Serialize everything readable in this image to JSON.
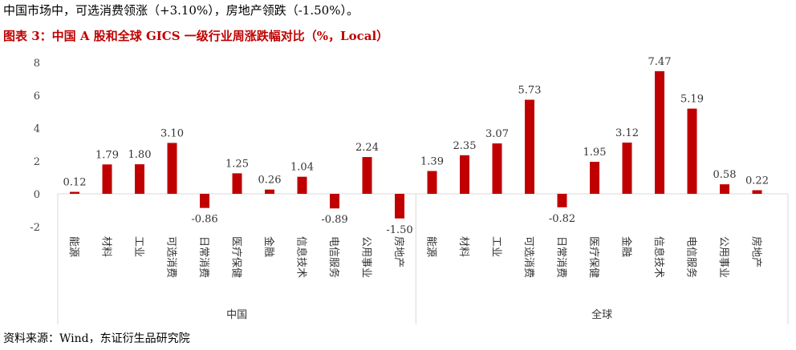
{
  "intro_text": "中国市场中，可选消费领涨（+3.10%），房地产领跌（-1.50%）。",
  "figure_title": "图表 3：中国 A 股和全球 GICS 一级行业周涨跌幅对比（%，Local）",
  "source_text": "资料来源：Wind，东证衍生品研究院",
  "chart_data": {
    "type": "bar",
    "title": "图表 3：中国 A 股和全球 GICS 一级行业周涨跌幅对比（%，Local）",
    "ylim": [
      -2,
      8
    ],
    "yticks": [
      -2,
      0,
      2,
      4,
      6,
      8
    ],
    "grid": false,
    "legend": "none",
    "bar_color": "#c00000",
    "groups": [
      {
        "name": "中国",
        "categories": [
          "能源",
          "材料",
          "工业",
          "可选消费",
          "日常消费",
          "医疗保健",
          "金融",
          "信息技术",
          "电信服务",
          "公用事业",
          "房地产"
        ],
        "values": [
          0.12,
          1.79,
          1.8,
          3.1,
          -0.86,
          1.25,
          0.26,
          1.04,
          -0.89,
          2.24,
          -1.5
        ],
        "labels": [
          "0.12",
          "1.79",
          "1.80",
          "3.10",
          "-0.86",
          "1.25",
          "0.26",
          "1.04",
          "-0.89",
          "2.24",
          "-1.50"
        ]
      },
      {
        "name": "全球",
        "categories": [
          "能源",
          "材料",
          "工业",
          "可选消费",
          "日常消费",
          "医疗保健",
          "金融",
          "信息技术",
          "电信服务",
          "公用事业",
          "房地产"
        ],
        "values": [
          1.39,
          2.35,
          3.07,
          5.73,
          -0.82,
          1.95,
          3.12,
          7.47,
          5.19,
          0.58,
          0.22
        ],
        "labels": [
          "1.39",
          "2.35",
          "3.07",
          "5.73",
          "-0.82",
          "1.95",
          "3.12",
          "7.47",
          "5.19",
          "0.58",
          "0.22"
        ]
      }
    ]
  }
}
